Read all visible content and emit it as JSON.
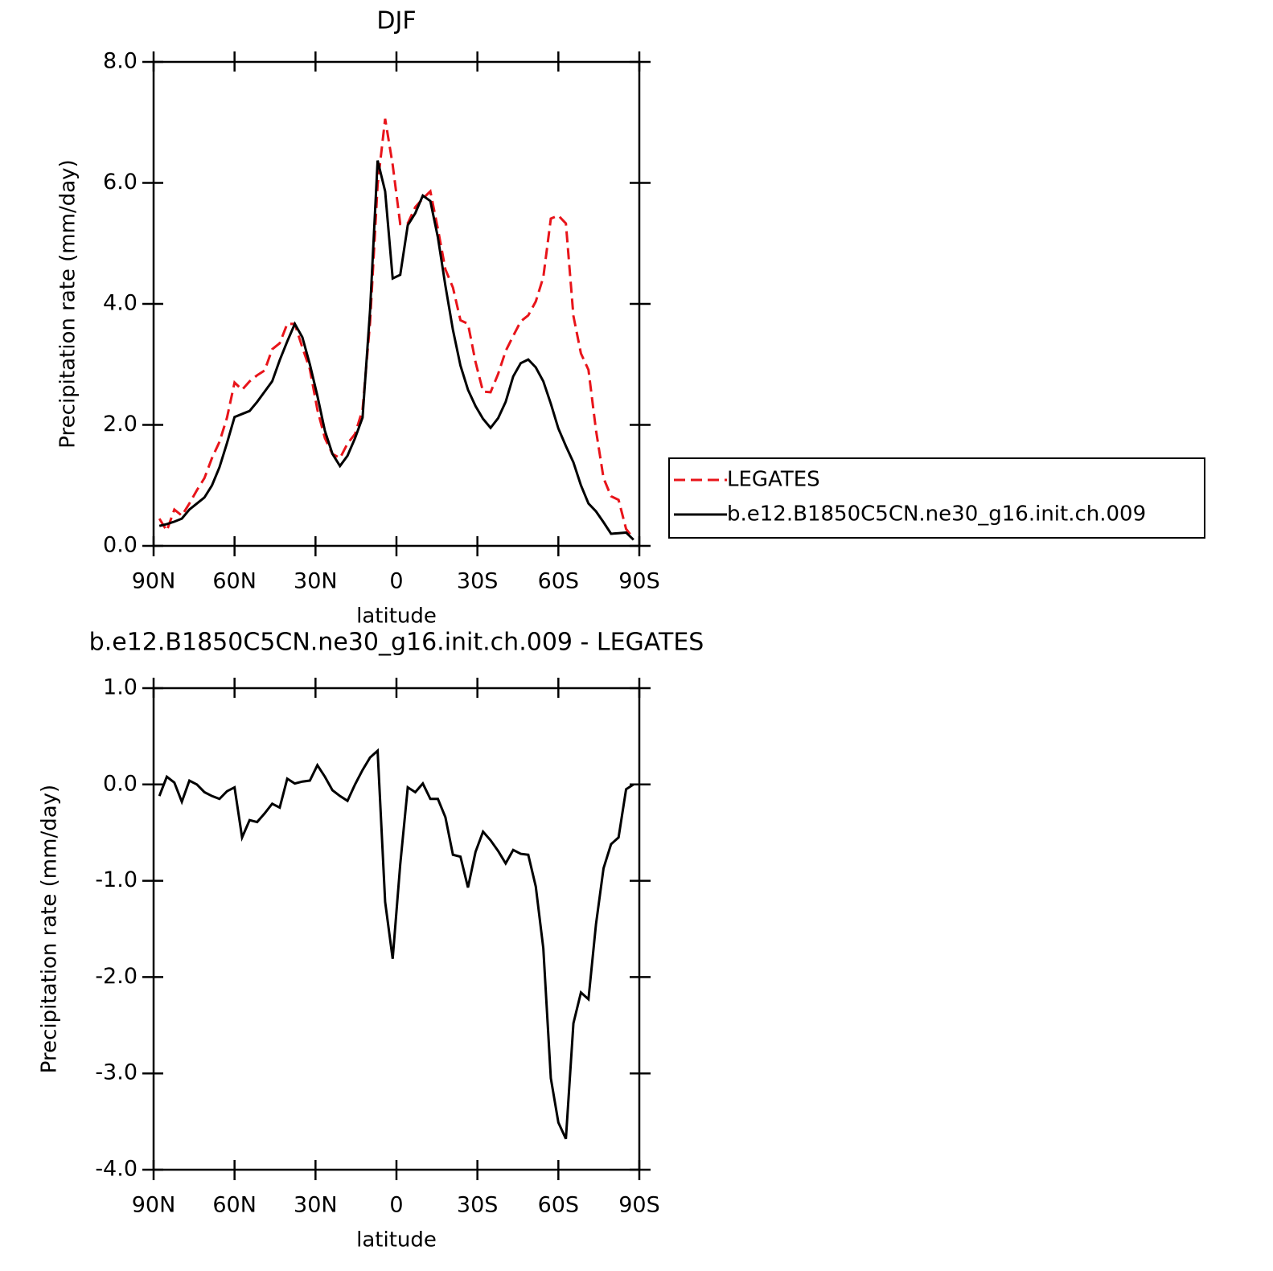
{
  "chart_data": [
    {
      "type": "line",
      "title": "DJF",
      "x_label": "latitude",
      "y_label": "Precipitation rate (mm/day)",
      "x": [
        87.86,
        85.1,
        82.31,
        79.53,
        76.74,
        73.95,
        71.16,
        68.37,
        65.58,
        62.79,
        60,
        57.21,
        54.42,
        51.63,
        48.84,
        46.05,
        43.26,
        40.47,
        37.67,
        34.88,
        32.09,
        29.3,
        26.51,
        23.72,
        20.93,
        18.14,
        15.35,
        12.56,
        9.77,
        6.98,
        4.19,
        1.4,
        -1.4,
        -4.19,
        -6.98,
        -9.77,
        -12.56,
        -15.35,
        -18.14,
        -20.93,
        -23.72,
        -26.51,
        -29.3,
        -32.09,
        -34.88,
        -37.67,
        -40.47,
        -43.26,
        -46.05,
        -48.84,
        -51.63,
        -54.42,
        -57.21,
        -60,
        -62.79,
        -65.58,
        -68.37,
        -71.16,
        -73.95,
        -76.74,
        -79.53,
        -82.31,
        -85.1,
        -87.86
      ],
      "series": [
        {
          "name": "LEGATES",
          "color": "#e8141a",
          "linestyle": "dashed",
          "values": [
            0.45,
            0.25,
            0.6,
            0.5,
            0.7,
            0.92,
            1.12,
            1.45,
            1.72,
            2.12,
            2.7,
            2.58,
            2.72,
            2.82,
            2.9,
            3.25,
            3.35,
            3.67,
            3.67,
            3.28,
            2.92,
            2.25,
            1.78,
            1.52,
            1.45,
            1.69,
            1.85,
            2.25,
            3.7,
            5.97,
            7.06,
            6.3,
            5.32,
            5.33,
            5.6,
            5.74,
            5.86,
            5.24,
            4.57,
            4.27,
            3.73,
            3.67,
            3.04,
            2.55,
            2.54,
            2.84,
            3.22,
            3.47,
            3.71,
            3.81,
            4.04,
            4.44,
            5.41,
            5.46,
            5.33,
            3.8,
            3.18,
            2.91,
            1.91,
            1.12,
            0.82,
            0.76,
            0.28,
            0.12
          ]
        },
        {
          "name": "b.e12.B1850C5CN.ne30_g16.init.ch.009",
          "color": "#000000",
          "linestyle": "solid",
          "values": [
            0.33,
            0.36,
            0.4,
            0.45,
            0.6,
            0.7,
            0.8,
            1.0,
            1.3,
            1.7,
            2.13,
            2.18,
            2.23,
            2.38,
            2.55,
            2.72,
            3.07,
            3.38,
            3.67,
            3.45,
            3.0,
            2.48,
            1.9,
            1.52,
            1.32,
            1.49,
            1.78,
            2.12,
            3.9,
            6.37,
            5.86,
            4.42,
            4.48,
            5.3,
            5.5,
            5.79,
            5.7,
            5.1,
            4.3,
            3.57,
            2.98,
            2.58,
            2.31,
            2.1,
            1.95,
            2.11,
            2.38,
            2.8,
            3.02,
            3.08,
            2.95,
            2.72,
            2.35,
            1.94,
            1.65,
            1.38,
            1.0,
            0.7,
            0.57,
            0.39,
            0.2,
            0.21,
            0.22,
            0.1
          ]
        }
      ],
      "xlim": [
        90,
        -90
      ],
      "xticks": [
        {
          "value": 90,
          "label": "90N"
        },
        {
          "value": 60,
          "label": "60N"
        },
        {
          "value": 30,
          "label": "30N"
        },
        0,
        {
          "value": -30,
          "label": "30S"
        },
        {
          "value": -60,
          "label": "60S"
        },
        {
          "value": -90,
          "label": "90S"
        }
      ],
      "ylim": [
        0,
        8
      ],
      "yticks": [
        {
          "value": 0,
          "label": "0.0"
        },
        {
          "value": 2,
          "label": "2.0"
        },
        {
          "value": 4,
          "label": "4.0"
        },
        {
          "value": 6,
          "label": "6.0"
        },
        {
          "value": 8,
          "label": "8.0"
        }
      ],
      "legend": "right"
    },
    {
      "type": "line",
      "title": "b.e12.B1850C5CN.ne30_g16.init.ch.009 - LEGATES",
      "x_label": "latitude",
      "y_label": "Precipitation rate (mm/day)",
      "x": [
        87.86,
        85.1,
        82.31,
        79.53,
        76.74,
        73.95,
        71.16,
        68.37,
        65.58,
        62.79,
        60,
        57.21,
        54.42,
        51.63,
        48.84,
        46.05,
        43.26,
        40.47,
        37.67,
        34.88,
        32.09,
        29.3,
        26.51,
        23.72,
        20.93,
        18.14,
        15.35,
        12.56,
        9.77,
        6.98,
        4.19,
        1.4,
        -1.4,
        -4.19,
        -6.98,
        -9.77,
        -12.56,
        -15.35,
        -18.14,
        -20.93,
        -23.72,
        -26.51,
        -29.3,
        -32.09,
        -34.88,
        -37.67,
        -40.47,
        -43.26,
        -46.05,
        -48.84,
        -51.63,
        -54.42,
        -57.21,
        -60,
        -62.79,
        -65.58,
        -68.37,
        -71.16,
        -73.95,
        -76.74,
        -79.53,
        -82.31,
        -85.1,
        -87.86
      ],
      "series": [
        {
          "color": "#000000",
          "linestyle": "solid",
          "values": [
            -0.12,
            0.08,
            0.02,
            -0.18,
            0.04,
            0.0,
            -0.08,
            -0.12,
            -0.15,
            -0.07,
            -0.03,
            -0.55,
            -0.37,
            -0.39,
            -0.3,
            -0.2,
            -0.24,
            0.06,
            0.01,
            0.03,
            0.04,
            0.2,
            0.08,
            -0.06,
            -0.12,
            -0.17,
            0.0,
            0.15,
            0.28,
            0.35,
            -1.22,
            -1.81,
            -0.83,
            -0.03,
            -0.08,
            0.01,
            -0.15,
            -0.15,
            -0.34,
            -0.73,
            -0.75,
            -1.07,
            -0.7,
            -0.49,
            -0.58,
            -0.69,
            -0.82,
            -0.68,
            -0.72,
            -0.73,
            -1.06,
            -1.7,
            -3.05,
            -3.51,
            -3.68,
            -2.48,
            -2.16,
            -2.23,
            -1.45,
            -0.87,
            -0.62,
            -0.55,
            -0.05,
            0.0
          ]
        }
      ],
      "xlim": [
        90,
        -90
      ],
      "xticks": [
        {
          "value": 90,
          "label": "90N"
        },
        {
          "value": 60,
          "label": "60N"
        },
        {
          "value": 30,
          "label": "30N"
        },
        0,
        {
          "value": -30,
          "label": "30S"
        },
        {
          "value": -60,
          "label": "60S"
        },
        {
          "value": -90,
          "label": "90S"
        }
      ],
      "ylim": [
        -4,
        1
      ],
      "yticks": [
        {
          "value": -4,
          "label": "-4.0"
        },
        {
          "value": -3,
          "label": "-3.0"
        },
        {
          "value": -2,
          "label": "-2.0"
        },
        {
          "value": -1,
          "label": "-1.0"
        },
        {
          "value": 0,
          "label": "0.0"
        },
        {
          "value": 1,
          "label": "1.0"
        }
      ]
    }
  ]
}
